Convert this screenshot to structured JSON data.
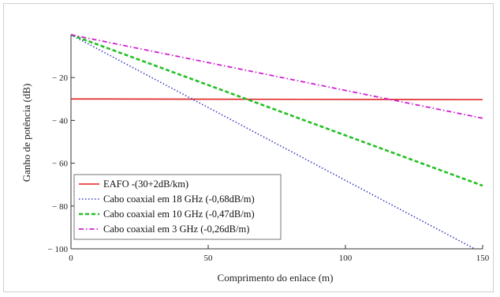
{
  "chart_data": {
    "type": "line",
    "title": "",
    "xlabel": "Comprimento do enlace (m)",
    "ylabel": "Ganho de potência (dB)",
    "xlim": [
      0,
      150
    ],
    "ylim": [
      -100,
      0
    ],
    "x_ticks": [
      0,
      50,
      100,
      150
    ],
    "y_ticks": [
      -20,
      -40,
      -60,
      -80,
      -100
    ],
    "y_tick_labels": [
      "− 20",
      "− 40",
      "− 60",
      "− 80",
      "− 100"
    ],
    "x_tick_labels": [
      "0",
      "50",
      "100",
      "150"
    ],
    "grid": false,
    "legend_position": "bottom-left",
    "series": [
      {
        "name": "EAFO -(30+2dB/km)",
        "color": "#e02020",
        "style": "solid",
        "x": [
          0,
          150
        ],
        "y": [
          -30,
          -30.3
        ]
      },
      {
        "name": "Cabo coaxial em 18 GHz (-0,68dB/m)",
        "color": "#3b3fc0",
        "style": "dotted",
        "x": [
          0,
          150
        ],
        "y": [
          0,
          -102
        ]
      },
      {
        "name": "Cabo coaxial em 10 GHz (-0,47dB/m)",
        "color": "#22c022",
        "style": "dashed",
        "x": [
          0,
          150
        ],
        "y": [
          0,
          -70.5
        ]
      },
      {
        "name": "Cabo coaxial em 3 GHz (-0,26dB/m)",
        "color": "#d020d0",
        "style": "dashdot",
        "x": [
          0,
          150
        ],
        "y": [
          0,
          -39
        ]
      }
    ]
  }
}
